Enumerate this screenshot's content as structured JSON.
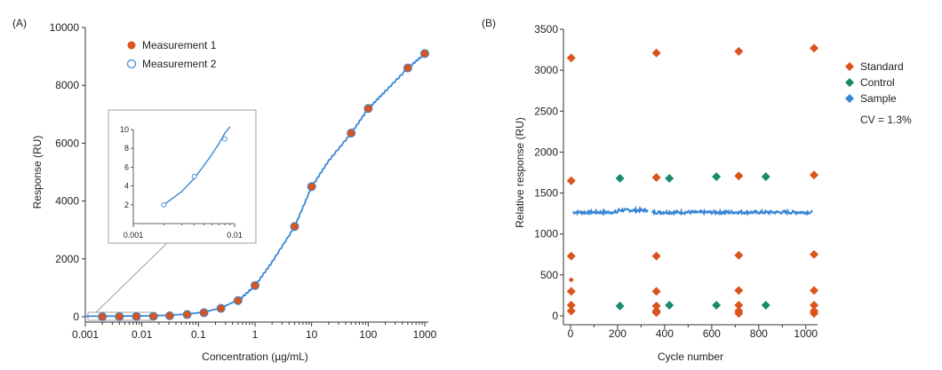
{
  "colors": {
    "orange": "#d9541e",
    "blue": "#3a86d4",
    "green": "#1a8a6e",
    "axis": "#333333",
    "inset_border": "#a0a0a0"
  },
  "chart_data": [
    {
      "panel": "(A)",
      "type": "scatter",
      "xscale": "log",
      "xlabel": "Concentration (µg/mL)",
      "ylabel": "Response (RU)",
      "xlim": [
        0.001,
        1000
      ],
      "ylim": [
        0,
        10000
      ],
      "xticks": [
        0.001,
        0.01,
        0.1,
        1,
        10,
        100,
        1000
      ],
      "xtick_labels": [
        "0.001",
        "0.01",
        "0.1",
        "1",
        "10",
        "100",
        "1000"
      ],
      "yticks": [
        0,
        2000,
        4000,
        6000,
        8000,
        10000
      ],
      "ytick_labels": [
        "0",
        "2000",
        "4000",
        "6000",
        "8000",
        "10000"
      ],
      "legend": [
        "Measurement 1",
        "Measurement 2"
      ],
      "series": [
        {
          "name": "Measurement 1",
          "x": [
            0.002,
            0.004,
            0.008,
            0.016,
            0.031,
            0.063,
            0.125,
            0.25,
            0.5,
            1,
            5,
            10,
            50,
            100,
            500,
            1000
          ],
          "y": [
            2,
            5,
            9,
            17,
            35,
            75,
            140,
            290,
            560,
            1080,
            3120,
            4500,
            6350,
            7200,
            8600,
            9100
          ]
        },
        {
          "name": "Measurement 2",
          "x": [
            0.002,
            0.004,
            0.008,
            0.016,
            0.031,
            0.063,
            0.125,
            0.25,
            0.5,
            1,
            5,
            10,
            50,
            100,
            500,
            1000
          ],
          "y": [
            2,
            5,
            9,
            17,
            35,
            75,
            140,
            290,
            560,
            1080,
            3120,
            4500,
            6350,
            7200,
            8600,
            9100
          ]
        },
        {
          "name": "Fit",
          "x": [
            0.001,
            0.002,
            0.004,
            0.008,
            0.016,
            0.031,
            0.063,
            0.125,
            0.25,
            0.5,
            1,
            2,
            5,
            10,
            20,
            50,
            100,
            200,
            500,
            1000
          ],
          "y": [
            0,
            2,
            5,
            9,
            17,
            35,
            75,
            140,
            290,
            560,
            1080,
            1900,
            3120,
            4500,
            5400,
            6350,
            7200,
            7800,
            8600,
            9100
          ]
        }
      ],
      "inset": {
        "xlim": [
          0.001,
          0.01
        ],
        "ylim": [
          0,
          10
        ],
        "xtick_labels": [
          "0.001",
          "0.01"
        ],
        "yticks": [
          2,
          4,
          6,
          8,
          10
        ],
        "ytick_labels": [
          "2",
          "4",
          "6",
          "8",
          "10"
        ],
        "points_x": [
          0.002,
          0.004,
          0.008
        ],
        "points_y": [
          2,
          5,
          9
        ],
        "fit_x": [
          0.002,
          0.003,
          0.004,
          0.005,
          0.006,
          0.007,
          0.008,
          0.009
        ],
        "fit_y": [
          2,
          3.4,
          4.8,
          6.2,
          7.4,
          8.5,
          9.6,
          10.3
        ]
      }
    },
    {
      "panel": "(B)",
      "type": "scatter",
      "xlabel": "Cycle number",
      "ylabel": "Relative response (RU)",
      "xlim": [
        0,
        1050
      ],
      "ylim": [
        0,
        3500
      ],
      "xticks": [
        0,
        200,
        400,
        600,
        800,
        1000
      ],
      "xtick_labels": [
        "0",
        "200",
        "400",
        "600",
        "800",
        "1000"
      ],
      "yticks": [
        0,
        500,
        1000,
        1500,
        2000,
        2500,
        3000,
        3500
      ],
      "ytick_labels": [
        "0",
        "500",
        "1000",
        "1500",
        "2000",
        "2500",
        "3000",
        "3500"
      ],
      "legend": [
        "Standard",
        "Control",
        "Sample"
      ],
      "annotation": "CV = 1.3%",
      "series": [
        {
          "name": "Standard",
          "x": [
            3,
            3,
            3,
            3,
            3,
            3,
            3,
            365,
            365,
            365,
            365,
            365,
            365,
            365,
            715,
            715,
            715,
            715,
            715,
            715,
            715,
            1035,
            1035,
            1035,
            1035,
            1035,
            1035,
            1035
          ],
          "y": [
            3150,
            1650,
            730,
            300,
            130,
            60,
            440,
            3210,
            1690,
            730,
            300,
            120,
            60,
            40,
            3230,
            1710,
            740,
            310,
            130,
            60,
            30,
            3270,
            1720,
            750,
            310,
            130,
            60,
            30
          ]
        },
        {
          "name": "Control",
          "x": [
            210,
            420,
            620,
            830,
            210,
            420,
            620,
            830
          ],
          "y": [
            1680,
            1680,
            1700,
            1700,
            120,
            130,
            130,
            130
          ]
        },
        {
          "name": "Sample",
          "segments": [
            [
              10,
              330
            ],
            [
              345,
              1030
            ]
          ],
          "level": 1265,
          "noise": 18
        }
      ]
    }
  ]
}
